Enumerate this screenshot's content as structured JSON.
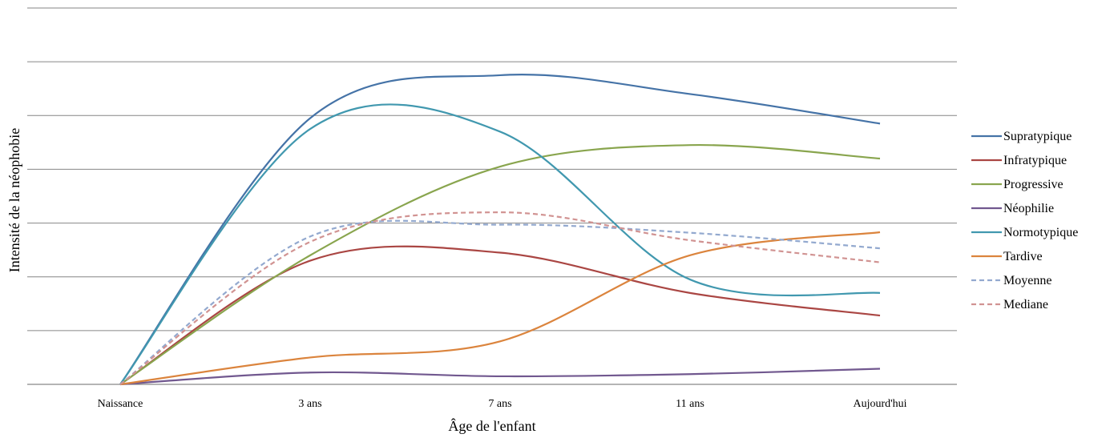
{
  "chart_data": {
    "type": "line",
    "title": "",
    "xlabel": "Âge de l'enfant",
    "ylabel": "Intensité de la néophobie",
    "categories": [
      "Naissance",
      "3 ans",
      "7 ans",
      "11 ans",
      "Aujourd'hui"
    ],
    "ylim": [
      0,
      7
    ],
    "grid": true,
    "y_tick_labels_shown": false,
    "legend_position": "right",
    "series": [
      {
        "name": "Supratypique",
        "color": "#4573a7",
        "dash": "solid",
        "values": [
          0,
          4.95,
          5.75,
          5.4,
          4.85
        ]
      },
      {
        "name": "Infratypique",
        "color": "#aa4643",
        "dash": "solid",
        "values": [
          0,
          2.3,
          2.45,
          1.7,
          1.28
        ]
      },
      {
        "name": "Progressive",
        "color": "#89a54e",
        "dash": "solid",
        "values": [
          0,
          2.4,
          4.05,
          4.45,
          4.2
        ]
      },
      {
        "name": "Néophilie",
        "color": "#71588f",
        "dash": "solid",
        "values": [
          0,
          0.22,
          0.15,
          0.19,
          0.29
        ]
      },
      {
        "name": "Normotypique",
        "color": "#4198af",
        "dash": "solid",
        "values": [
          0,
          4.75,
          4.7,
          1.95,
          1.7
        ]
      },
      {
        "name": "Tardive",
        "color": "#db843d",
        "dash": "solid",
        "values": [
          0,
          0.5,
          0.8,
          2.4,
          2.83
        ]
      },
      {
        "name": "Moyenne",
        "color": "#93a9cf",
        "dash": "dashed",
        "values": [
          0,
          2.75,
          2.97,
          2.82,
          2.53
        ]
      },
      {
        "name": "Mediane",
        "color": "#d19392",
        "dash": "dashed",
        "values": [
          0,
          2.65,
          3.2,
          2.68,
          2.27
        ]
      }
    ]
  }
}
